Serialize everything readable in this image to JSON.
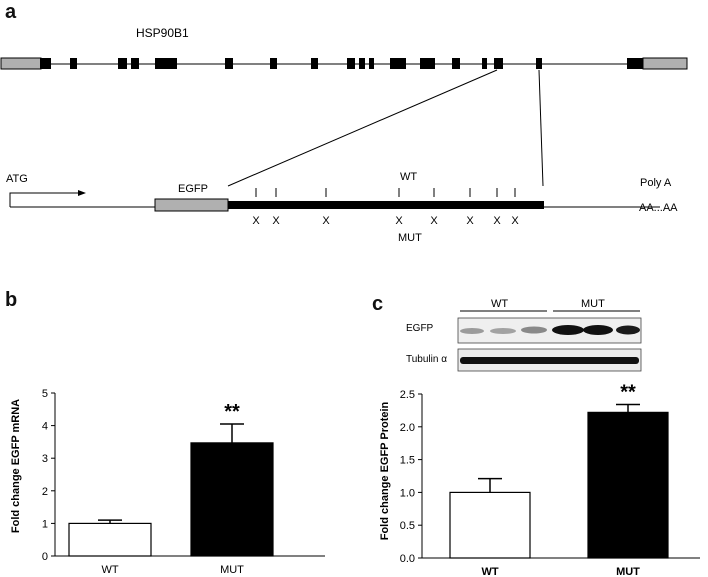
{
  "panels": {
    "a": "a",
    "b": "b",
    "c": "c"
  },
  "panel_a": {
    "gene_name": "HSP90B1",
    "start_label": "ATG",
    "tag_label": "EGFP",
    "wt_label": "WT",
    "mut_label": "MUT",
    "polyA_label": "Poly A",
    "polyA_tail": "AA...AA",
    "mutation_mark": "X"
  },
  "panel_c_blot": {
    "group_labels": [
      "WT",
      "MUT"
    ],
    "row_labels": [
      "EGFP",
      "Tubulin α"
    ]
  },
  "significance": "**",
  "chart_data": [
    {
      "id": "b",
      "type": "bar",
      "categories": [
        "WT",
        "MUT"
      ],
      "values": [
        1.0,
        3.47
      ],
      "errors": [
        0.1,
        0.58
      ],
      "fills": [
        "#ffffff",
        "#000000"
      ],
      "ylabel": "Fold change EGFP  mRNA",
      "ylim": [
        0,
        5
      ],
      "yticks": [
        "0",
        "1",
        "2",
        "3",
        "4",
        "5"
      ],
      "significance": [
        "",
        "**"
      ]
    },
    {
      "id": "c",
      "type": "bar",
      "categories": [
        "WT",
        "MUT"
      ],
      "values": [
        1.0,
        2.22
      ],
      "errors": [
        0.21,
        0.12
      ],
      "fills": [
        "#ffffff",
        "#000000"
      ],
      "ylabel": "Fold change EGFP  Protein",
      "ylim": [
        0,
        2.5
      ],
      "yticks": [
        "0.0",
        "0.5",
        "1.0",
        "1.5",
        "2.0",
        "2.5"
      ],
      "significance": [
        "",
        "**"
      ]
    }
  ]
}
